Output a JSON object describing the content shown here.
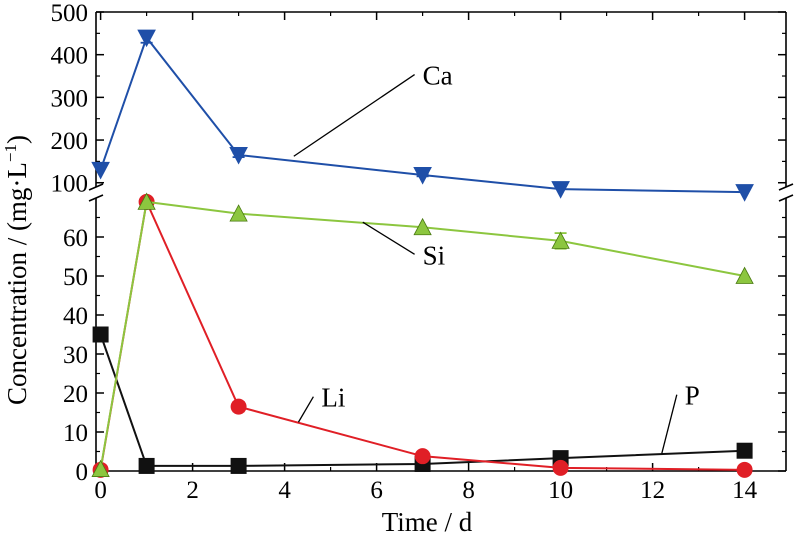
{
  "chart_data": {
    "type": "line",
    "xlabel": "Time / d",
    "ylabel_main": "Concentration / (mg·L",
    "ylabel_sup": "−1",
    "ylabel_close": ")",
    "x_ticks": [
      "0",
      "2",
      "4",
      "6",
      "8",
      "10",
      "12",
      "14"
    ],
    "xlim": [
      -0.1,
      14.9
    ],
    "y_axis_broken": true,
    "y_upper": {
      "range": [
        90,
        500
      ],
      "ticks": [
        "100",
        "200",
        "300",
        "400",
        "500"
      ]
    },
    "y_lower": {
      "range": [
        0,
        70
      ],
      "ticks": [
        "0",
        "10",
        "20",
        "30",
        "40",
        "50",
        "60"
      ]
    },
    "x": [
      0,
      1,
      3,
      7,
      10,
      14
    ],
    "series": [
      {
        "name": "Ca",
        "panel": "upper",
        "marker": "triangle-down",
        "color": "#1f4fa8",
        "values": [
          130,
          440,
          165,
          118,
          85,
          78
        ],
        "errors": [
          0,
          12,
          5,
          3,
          0,
          0
        ],
        "label_x": 7.0,
        "label_y": 330,
        "leader_x": 4.2,
        "leader_y": 162
      },
      {
        "name": "Si",
        "panel": "lower",
        "marker": "triangle-up",
        "color": "#8cc63f",
        "values": [
          0.5,
          69,
          66,
          62.5,
          59,
          50
        ],
        "errors": [
          0,
          0,
          0,
          0,
          2,
          0
        ],
        "label_x": 7.0,
        "label_y": 53,
        "leader_x": 5.7,
        "leader_y": 63.8
      },
      {
        "name": "Li",
        "panel": "lower",
        "marker": "circle",
        "color": "#e01f26",
        "values": [
          0.3,
          69,
          16.5,
          3.8,
          0.8,
          0.3
        ],
        "errors": [
          0,
          0,
          1.2,
          0,
          0,
          0
        ],
        "label_x": 4.8,
        "label_y": 16.5,
        "leader_x": 4.3,
        "leader_y": 12.5
      },
      {
        "name": "P",
        "panel": "lower",
        "marker": "square",
        "color": "#111111",
        "values": [
          35,
          1.3,
          1.3,
          1.8,
          3.3,
          5.2
        ],
        "errors": [
          0,
          0,
          0,
          0,
          0,
          0
        ],
        "label_x": 12.7,
        "label_y": 17,
        "leader_x": 12.2,
        "leader_y": 4.5
      }
    ]
  }
}
